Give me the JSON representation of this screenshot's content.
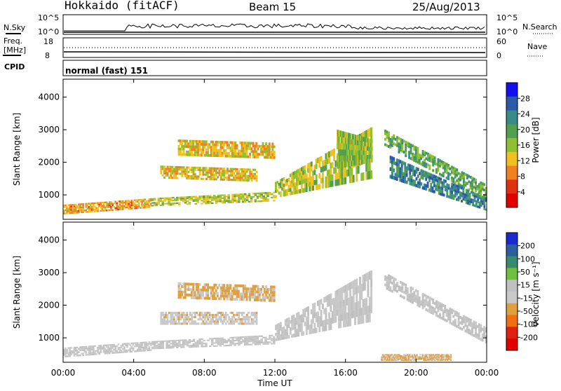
{
  "header": {
    "station": "Hokkaido (fitACF)",
    "beam": "Beam 15",
    "date": "25/Aug/2013"
  },
  "strip": {
    "nsky_label": "N.Sky",
    "nsearch_label": "N.Search",
    "nsky_ticks": [
      "10^5",
      "10^0"
    ],
    "nsearch_ticks": [
      "10^5",
      "10^0"
    ],
    "freq_label_1": "Freq.",
    "freq_label_2": "[MHz]",
    "freq_ticks": [
      "18",
      "8"
    ],
    "nave_label": "Nave",
    "nave_ticks": [
      "60",
      "0"
    ],
    "cpid_label": "CPID",
    "cpid_value": "normal (fast) 151"
  },
  "colors": {
    "power_scale": [
      "#1010f0",
      "#2a5aa8",
      "#3a8a8a",
      "#50a050",
      "#90c030",
      "#f0c020",
      "#f08020",
      "#e03010",
      "#e00000"
    ],
    "velocity_scale": [
      "#1a2ad0",
      "#2a60a0",
      "#3a8a70",
      "#70c040",
      "#c0c0c0",
      "#c8c8c8",
      "#e0a040",
      "#f07010",
      "#e02010",
      "#e00000"
    ]
  },
  "chart_data": [
    {
      "type": "heatmap",
      "name_panel": "power",
      "ylabel": "Slant Range [km]",
      "yticks": [
        "4000",
        "3000",
        "2000",
        "1000"
      ],
      "ylim": [
        250,
        4550
      ],
      "xticks": [
        "00:00",
        "04:00",
        "08:00",
        "12:00",
        "16:00",
        "20:00",
        "00:00"
      ],
      "xlim_hours": [
        0,
        24
      ],
      "colorbar": {
        "label": "Power [dB]",
        "ticks": [
          "28",
          "24",
          "20",
          "16",
          "12",
          "8",
          "4"
        ],
        "range": [
          0,
          30
        ]
      },
      "echo_bands": [
        {
          "t": [
            0.0,
            5.0
          ],
          "r_low": [
            400,
            600
          ],
          "r_high": [
            700,
            900
          ],
          "power": 10
        },
        {
          "t": [
            5.0,
            12.0
          ],
          "r_low": [
            650,
            800
          ],
          "r_high": [
            900,
            1100
          ],
          "power": 14
        },
        {
          "t": [
            12.0,
            17.5
          ],
          "r_low": [
            900,
            1500
          ],
          "r_high": [
            1400,
            3100
          ],
          "power": 14
        },
        {
          "t": [
            5.5,
            11.0
          ],
          "r_low": [
            1500,
            1400
          ],
          "r_high": [
            1900,
            1800
          ],
          "power": 12
        },
        {
          "t": [
            6.5,
            12.0
          ],
          "r_low": [
            2200,
            2100
          ],
          "r_high": [
            2700,
            2600
          ],
          "power": 12
        },
        {
          "t": [
            15.5,
            17.5
          ],
          "r_low": [
            1800,
            2000
          ],
          "r_high": [
            3000,
            2700
          ],
          "power": 16
        },
        {
          "t": [
            18.2,
            24.0
          ],
          "r_low": [
            2500,
            800
          ],
          "r_high": [
            3000,
            1300
          ],
          "power": 18
        },
        {
          "t": [
            18.5,
            24.0
          ],
          "r_low": [
            1500,
            500
          ],
          "r_high": [
            2200,
            900
          ],
          "power": 22
        }
      ]
    },
    {
      "type": "heatmap",
      "name_panel": "velocity",
      "ylabel": "Slant Range [km]",
      "yticks": [
        "4000",
        "3000",
        "2000",
        "1000"
      ],
      "ylim": [
        250,
        4550
      ],
      "xticks": [
        "00:00",
        "04:00",
        "08:00",
        "12:00",
        "16:00",
        "20:00",
        "00:00"
      ],
      "xlabel": "Time UT",
      "xlim_hours": [
        0,
        24
      ],
      "colorbar": {
        "label": "Velocity [m s⁻¹]",
        "ticks": [
          "200",
          "100",
          "50",
          "15",
          "-15",
          "-50",
          "-100",
          "-200"
        ],
        "range": [
          -250,
          250
        ]
      },
      "echo_bands": [
        {
          "t": [
            0.0,
            5.0
          ],
          "r_low": [
            400,
            600
          ],
          "r_high": [
            700,
            900
          ],
          "velocity": 0
        },
        {
          "t": [
            5.0,
            12.0
          ],
          "r_low": [
            650,
            800
          ],
          "r_high": [
            900,
            1100
          ],
          "velocity": 0
        },
        {
          "t": [
            5.5,
            11.0
          ],
          "r_low": [
            1400,
            1400
          ],
          "r_high": [
            1800,
            1800
          ],
          "velocity": -30
        },
        {
          "t": [
            6.5,
            12.0
          ],
          "r_low": [
            2200,
            2100
          ],
          "r_high": [
            2700,
            2600
          ],
          "velocity": -60
        },
        {
          "t": [
            12.0,
            17.5
          ],
          "r_low": [
            900,
            1500
          ],
          "r_high": [
            1400,
            3100
          ],
          "velocity": -10
        },
        {
          "t": [
            18.2,
            24.0
          ],
          "r_low": [
            2500,
            800
          ],
          "r_high": [
            3000,
            1300
          ],
          "velocity": 10
        },
        {
          "t": [
            18.0,
            22.0
          ],
          "r_low": [
            300,
            300
          ],
          "r_high": [
            500,
            500
          ],
          "velocity": -60
        }
      ]
    }
  ]
}
